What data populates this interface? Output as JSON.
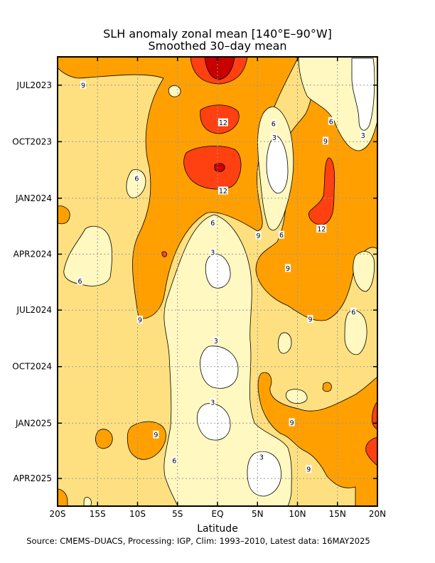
{
  "chart_data": {
    "type": "heatmap",
    "title": "SLH anomaly zonal mean [140°E–90°W]",
    "subtitle": "Smoothed 30–day mean",
    "xlabel": "Latitude",
    "x_ticks": [
      "20S",
      "15S",
      "10S",
      "5S",
      "EQ",
      "5N",
      "10N",
      "15N",
      "20N"
    ],
    "x_values": [
      -20,
      -15,
      -10,
      -5,
      0,
      5,
      10,
      15,
      20
    ],
    "y_ticks": [
      "JUL2023",
      "OCT2023",
      "JAN2024",
      "APR2024",
      "JUL2024",
      "OCT2024",
      "JAN2025",
      "APR2025"
    ],
    "y_dates": [
      "2023-07-01",
      "2023-10-01",
      "2024-01-01",
      "2024-04-01",
      "2024-07-01",
      "2024-10-01",
      "2025-01-01",
      "2025-04-01"
    ],
    "xlim": [
      -20,
      20
    ],
    "ylim": [
      "2023-05-16",
      "2025-05-16"
    ],
    "grid": true,
    "contour_levels": [
      3,
      6,
      9,
      12
    ],
    "colors": [
      "#ffffff",
      "#fff8c0",
      "#ffe080",
      "#ffa000",
      "#ff4010",
      "#c80000"
    ],
    "contour_labels": [
      {
        "text": "9",
        "lat": -16.8,
        "date": "2023-07-01"
      },
      {
        "text": "12",
        "lat": 0.7,
        "date": "2023-08-31"
      },
      {
        "text": "6",
        "lat": 7,
        "date": "2023-09-02"
      },
      {
        "text": "6",
        "lat": 14.2,
        "date": "2023-08-29"
      },
      {
        "text": "3",
        "lat": 7.1,
        "date": "2023-09-24"
      },
      {
        "text": "9",
        "lat": 13.5,
        "date": "2023-09-30"
      },
      {
        "text": "3",
        "lat": 18.2,
        "date": "2023-09-21"
      },
      {
        "text": "6",
        "lat": -10.1,
        "date": "2023-11-30"
      },
      {
        "text": "12",
        "lat": 0.7,
        "date": "2023-12-20"
      },
      {
        "text": "12",
        "lat": 13,
        "date": "2024-02-20"
      },
      {
        "text": "6",
        "lat": -0.6,
        "date": "2024-02-10"
      },
      {
        "text": "9",
        "lat": 5.1,
        "date": "2024-03-02"
      },
      {
        "text": "6",
        "lat": 8,
        "date": "2024-03-01"
      },
      {
        "text": "3",
        "lat": -0.6,
        "date": "2024-03-29"
      },
      {
        "text": "9",
        "lat": 8.8,
        "date": "2024-04-24"
      },
      {
        "text": "6",
        "lat": -17.2,
        "date": "2024-05-15"
      },
      {
        "text": "9",
        "lat": -9.7,
        "date": "2024-07-17"
      },
      {
        "text": "9",
        "lat": 11.6,
        "date": "2024-07-16"
      },
      {
        "text": "6",
        "lat": 17,
        "date": "2024-07-04"
      },
      {
        "text": "3",
        "lat": -0.2,
        "date": "2024-08-20"
      },
      {
        "text": "3",
        "lat": -0.6,
        "date": "2024-11-28"
      },
      {
        "text": "9",
        "lat": 9.3,
        "date": "2024-12-31"
      },
      {
        "text": "9",
        "lat": -7.7,
        "date": "2025-01-20"
      },
      {
        "text": "3",
        "lat": 5.5,
        "date": "2025-02-25"
      },
      {
        "text": "6",
        "lat": -5.4,
        "date": "2025-03-03"
      },
      {
        "text": "9",
        "lat": 11.4,
        "date": "2025-03-17"
      }
    ]
  },
  "footer": {
    "source": "Source: CMEMS–DUACS, Processing: IGP, Clim: 1993–2010, Latest data: 16MAY2025"
  }
}
